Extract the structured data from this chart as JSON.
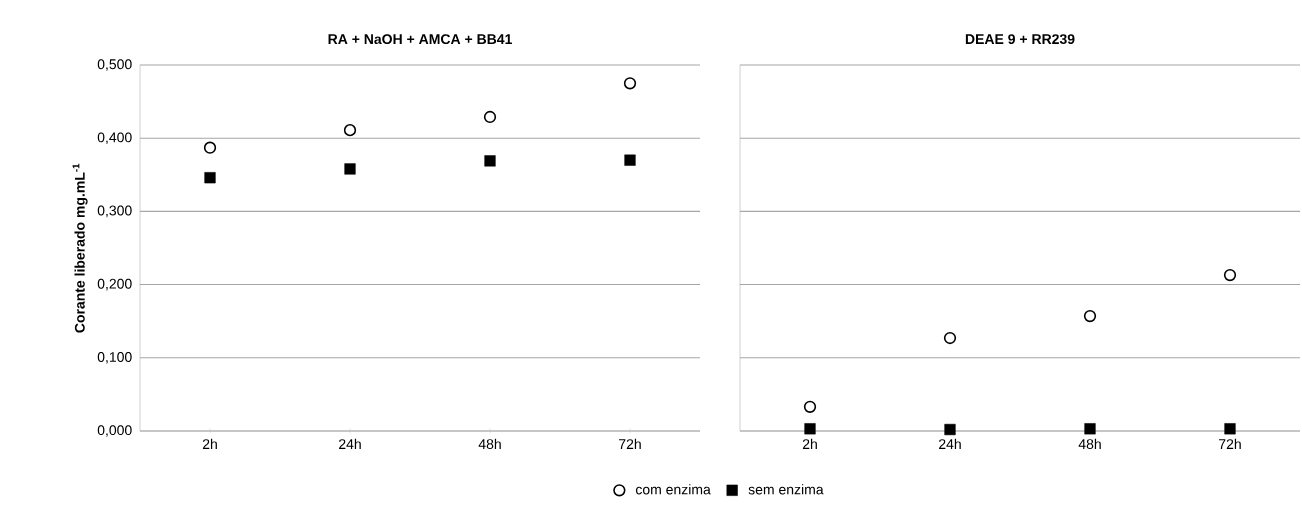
{
  "chart_data": [
    {
      "type": "scatter",
      "title": "RA + NaOH + AMCA + BB41",
      "ylabel": "Corante liberado mg.mL$^{-1}$",
      "categories": [
        "2h",
        "24h",
        "48h",
        "72h"
      ],
      "ylim": [
        0,
        0.5
      ],
      "yticks": [
        {
          "value": 0,
          "label": "0,000"
        },
        {
          "value": 0.1,
          "label": "0,100"
        },
        {
          "value": 0.2,
          "label": "0,200"
        },
        {
          "value": 0.3,
          "label": "0,300"
        },
        {
          "value": 0.4,
          "label": "0,400"
        },
        {
          "value": 0.5,
          "label": "0,500"
        }
      ],
      "grid": "y",
      "legend": "bottom",
      "series": [
        {
          "name": "com enzima",
          "color": "#000000",
          "marker": "circle",
          "values": [
            0.387,
            0.411,
            0.429,
            0.475
          ]
        },
        {
          "name": "sem enzima",
          "color": "#000000",
          "marker": "square",
          "values": [
            0.346,
            0.358,
            0.369,
            0.37
          ]
        }
      ]
    },
    {
      "type": "scatter",
      "title": "DEAE 9 + RR239",
      "categories": [
        "2h",
        "24h",
        "48h",
        "72h"
      ],
      "ylim": [
        0,
        0.5
      ],
      "yticks": [
        0,
        0.1,
        0.2,
        0.3,
        0.4,
        0.5
      ],
      "grid": "y",
      "tick_labels": "x",
      "series": [
        {
          "color": "#000000",
          "marker": "circle",
          "values": [
            0.033,
            0.127,
            0.157,
            0.213
          ]
        },
        {
          "color": "#000000",
          "marker": "square",
          "values": [
            0.003,
            0.002,
            0.003,
            0.003
          ]
        }
      ]
    }
  ]
}
